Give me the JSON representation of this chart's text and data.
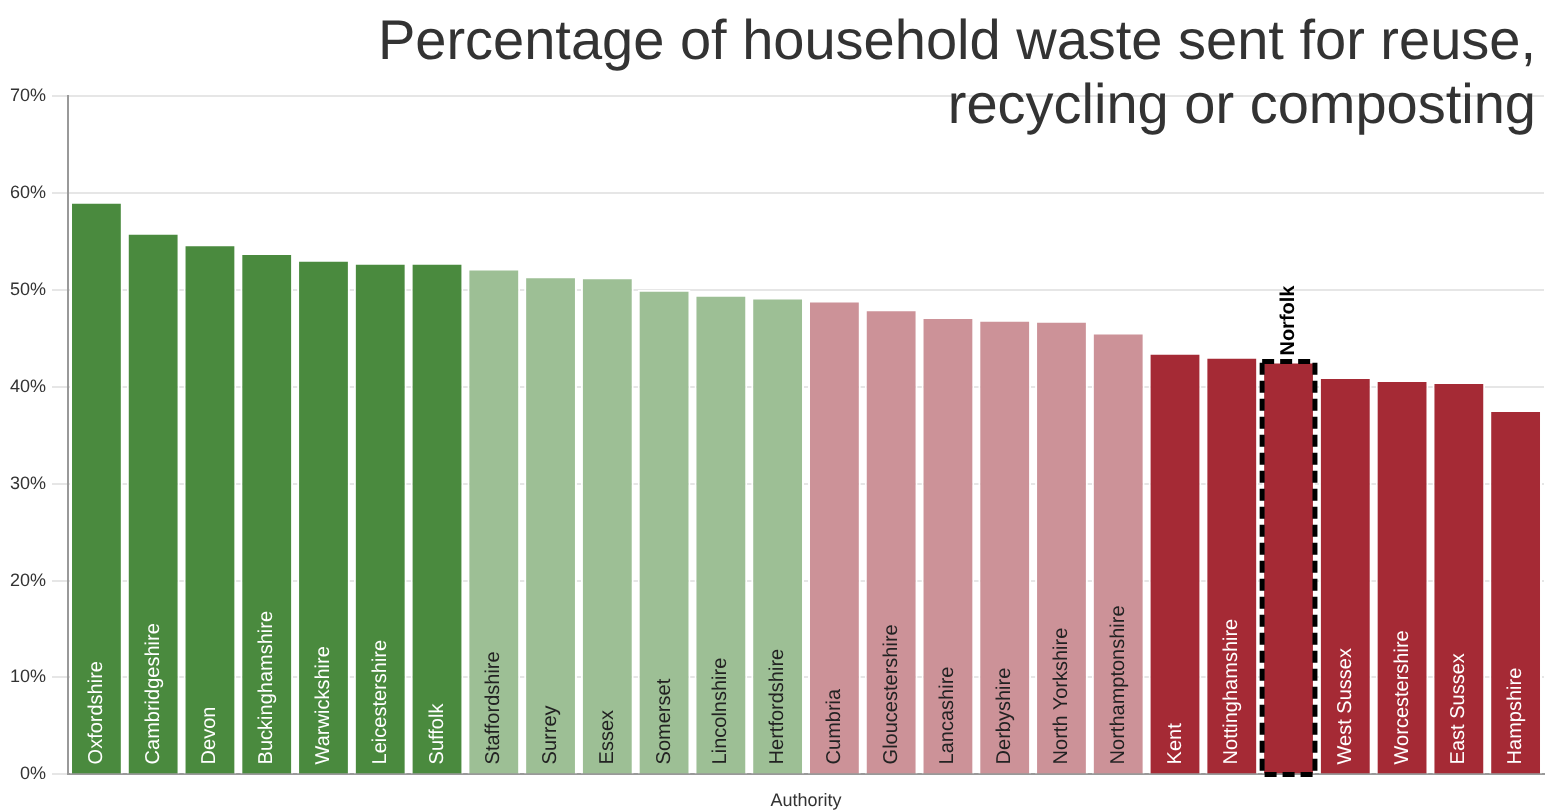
{
  "chart_data": {
    "type": "bar",
    "title": "Percentage of household waste sent for reuse, recycling or composting",
    "xlabel": "Authority",
    "categories": [
      "Oxfordshire",
      "Cambridgeshire",
      "Devon",
      "Buckinghamshire",
      "Warwickshire",
      "Leicestershire",
      "Suffolk",
      "Staffordshire",
      "Surrey",
      "Essex",
      "Somerset",
      "Lincolnshire",
      "Hertfordshire",
      "Cumbria",
      "Gloucestershire",
      "Lancashire",
      "Derbyshire",
      "North Yorkshire",
      "Northamptonshire",
      "Kent",
      "Nottinghamshire",
      null,
      "West Sussex",
      "Worcestershire",
      "East Sussex",
      "Hampshire"
    ],
    "values": [
      59.1,
      55.9,
      54.7,
      53.8,
      53.1,
      52.8,
      52.8,
      52.2,
      51.4,
      51.3,
      50.0,
      49.5,
      49.2,
      48.9,
      48.0,
      47.2,
      46.9,
      46.8,
      45.6,
      43.5,
      43.1,
      42.6,
      41.0,
      40.7,
      40.5,
      37.6
    ],
    "colors": [
      "#4a8a3e",
      "#4a8a3e",
      "#4a8a3e",
      "#4a8a3e",
      "#4a8a3e",
      "#4a8a3e",
      "#4a8a3e",
      "#9dbf95",
      "#9dbf95",
      "#9dbf95",
      "#9dbf95",
      "#9dbf95",
      "#9dbf95",
      "#cc9298",
      "#cc9298",
      "#cc9298",
      "#cc9298",
      "#cc9298",
      "#cc9298",
      "#a52a35",
      "#a52a35",
      "#a52a35",
      "#a52a35",
      "#a52a35",
      "#a52a35",
      "#a52a35"
    ],
    "ylim": [
      0,
      70
    ],
    "yticks": [
      {
        "value": 0,
        "label": "0%"
      },
      {
        "value": 10,
        "label": "10%"
      },
      {
        "value": 20,
        "label": "20%"
      },
      {
        "value": 30,
        "label": "30%"
      },
      {
        "value": 40,
        "label": "40%"
      },
      {
        "value": 50,
        "label": "50%"
      },
      {
        "value": 60,
        "label": "60%"
      },
      {
        "value": 70,
        "label": "70%"
      }
    ],
    "grid": "y",
    "annotations": [
      {
        "text": "Norfolk",
        "y": 42.6
      }
    ]
  }
}
